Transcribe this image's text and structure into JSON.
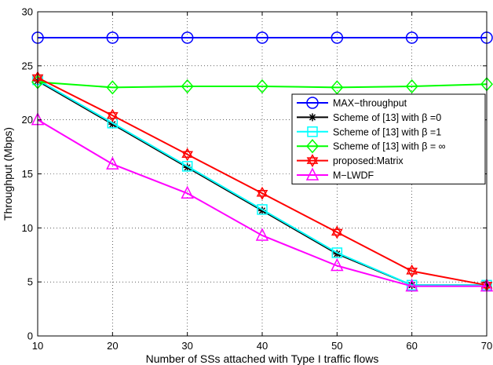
{
  "chart_data": {
    "type": "line",
    "title": "",
    "xlabel": "Number of SSs attached with Type I traffic flows",
    "ylabel": "Throughput (Mbps)",
    "xlim": [
      10,
      70
    ],
    "ylim": [
      0,
      30
    ],
    "xticks": [
      "10",
      "20",
      "30",
      "40",
      "50",
      "60",
      "70"
    ],
    "yticks": [
      "0",
      "5",
      "10",
      "15",
      "20",
      "25",
      "30"
    ],
    "grid": true,
    "legend_position": "right",
    "x": [
      10,
      20,
      30,
      40,
      50,
      60,
      70
    ],
    "series": [
      {
        "name": "MAX−throughput",
        "color": "#0000ff",
        "marker": "circle",
        "values": [
          27.6,
          27.6,
          27.6,
          27.6,
          27.6,
          27.6,
          27.6
        ]
      },
      {
        "name": "Scheme of [13] with β =0",
        "color": "#000000",
        "marker": "asterisk",
        "values": [
          23.6,
          19.6,
          15.6,
          11.6,
          7.6,
          4.7,
          4.7
        ]
      },
      {
        "name": "Scheme of [13] with β =1",
        "color": "#00ffff",
        "marker": "square",
        "values": [
          23.7,
          19.7,
          15.7,
          11.7,
          7.7,
          4.7,
          4.7
        ]
      },
      {
        "name": "Scheme of [13] with β = ∞",
        "color": "#00ff00",
        "marker": "diamond",
        "values": [
          23.5,
          23.0,
          23.1,
          23.1,
          23.0,
          23.1,
          23.3
        ]
      },
      {
        "name": "proposed:Matrix",
        "color": "#ff0000",
        "marker": "hexagram",
        "values": [
          23.9,
          20.4,
          16.8,
          13.2,
          9.6,
          6.0,
          4.7
        ]
      },
      {
        "name": "M−LWDF",
        "color": "#ff00ff",
        "marker": "triangle",
        "values": [
          20.0,
          15.9,
          13.2,
          9.3,
          6.5,
          4.6,
          4.6
        ]
      }
    ]
  }
}
